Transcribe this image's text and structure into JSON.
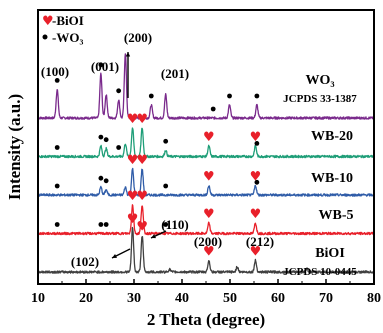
{
  "chart_data": {
    "type": "line",
    "xlabel": "2 Theta (degree)",
    "ylabel": "Intensity (a.u.)",
    "xlim": [
      10,
      80
    ],
    "x_ticks": [
      10,
      20,
      30,
      40,
      50,
      60,
      70,
      80
    ],
    "y_ticks_shown": false,
    "grid": false,
    "legend": {
      "placement": "top-left",
      "entries": [
        {
          "marker": "heart",
          "label": "-BiOI",
          "color": "#e8202a"
        },
        {
          "marker": "dot",
          "label": "-WO₃",
          "color": "#000000"
        }
      ]
    },
    "series": [
      {
        "name": "WO₃",
        "reference": "JCPDS 33-1387",
        "color": "#7a2a8c",
        "offset": 4.0,
        "peaks": [
          {
            "x": 14.0,
            "h": 0.55
          },
          {
            "x": 23.1,
            "h": 0.85
          },
          {
            "x": 24.2,
            "h": 0.45
          },
          {
            "x": 26.8,
            "h": 0.35
          },
          {
            "x": 28.2,
            "h": 1.25
          },
          {
            "x": 33.6,
            "h": 0.25
          },
          {
            "x": 36.6,
            "h": 0.45
          },
          {
            "x": 49.9,
            "h": 0.25
          },
          {
            "x": 55.6,
            "h": 0.25
          }
        ],
        "wo3_markers": [
          14.0,
          23.1,
          26.8,
          33.6,
          46.5,
          49.9,
          55.6
        ],
        "bioi_markers": []
      },
      {
        "name": "WB-20",
        "color": "#1f9e78",
        "offset": 3.0,
        "peaks": [
          {
            "x": 23.1,
            "h": 0.2
          },
          {
            "x": 24.2,
            "h": 0.15
          },
          {
            "x": 28.2,
            "h": 0.25
          },
          {
            "x": 29.7,
            "h": 0.55
          },
          {
            "x": 31.7,
            "h": 0.55
          },
          {
            "x": 36.6,
            "h": 0.12
          },
          {
            "x": 45.6,
            "h": 0.2
          },
          {
            "x": 55.3,
            "h": 0.2
          }
        ],
        "wo3_markers": [
          14.0,
          23.1,
          24.2,
          26.8,
          36.6,
          55.6
        ],
        "bioi_markers": [
          29.7,
          31.7,
          45.6,
          55.3
        ]
      },
      {
        "name": "WB-10",
        "color": "#2f5ca8",
        "offset": 2.0,
        "peaks": [
          {
            "x": 23.1,
            "h": 0.15
          },
          {
            "x": 24.2,
            "h": 0.1
          },
          {
            "x": 28.2,
            "h": 0.15
          },
          {
            "x": 29.7,
            "h": 0.5
          },
          {
            "x": 31.7,
            "h": 0.5
          },
          {
            "x": 45.6,
            "h": 0.18
          },
          {
            "x": 55.3,
            "h": 0.18
          }
        ],
        "wo3_markers": [
          14.0,
          23.1,
          24.2,
          36.6,
          55.6
        ],
        "bioi_markers": [
          29.7,
          31.7,
          45.6,
          55.3
        ]
      },
      {
        "name": "WB-5",
        "color": "#e8202a",
        "offset": 1.0,
        "peaks": [
          {
            "x": 29.7,
            "h": 0.55
          },
          {
            "x": 31.7,
            "h": 0.55
          },
          {
            "x": 45.6,
            "h": 0.2
          },
          {
            "x": 55.3,
            "h": 0.2
          }
        ],
        "wo3_markers": [
          14.0,
          23.1,
          24.2,
          36.6
        ],
        "bioi_markers": [
          29.7,
          31.7,
          45.6,
          55.3
        ]
      },
      {
        "name": "BiOI",
        "reference": "JCPDS 10-0445",
        "color": "#404040",
        "offset": 0.0,
        "peaks": [
          {
            "x": 29.7,
            "h": 0.85
          },
          {
            "x": 31.7,
            "h": 0.7
          },
          {
            "x": 37.4,
            "h": 0.05
          },
          {
            "x": 45.6,
            "h": 0.22
          },
          {
            "x": 51.5,
            "h": 0.1
          },
          {
            "x": 55.3,
            "h": 0.22
          },
          {
            "x": 66.0,
            "h": 0.06
          }
        ],
        "wo3_markers": [],
        "bioi_markers": [
          29.7,
          31.7,
          45.6,
          55.3
        ]
      }
    ],
    "annotations": [
      {
        "text": "(100)",
        "x": 14.0,
        "series": "WO₃"
      },
      {
        "text": "(001)",
        "x": 23.1,
        "series": "WO₃"
      },
      {
        "text": "(200)",
        "x": 28.2,
        "series": "WO₃"
      },
      {
        "text": "(201)",
        "x": 36.6,
        "series": "WO₃"
      },
      {
        "text": "(102)",
        "x": 29.7,
        "series": "BiOI"
      },
      {
        "text": "(110)",
        "x": 31.7,
        "series": "BiOI"
      },
      {
        "text": "(200)",
        "x": 45.6,
        "series": "BiOI"
      },
      {
        "text": "(212)",
        "x": 55.3,
        "series": "BiOI"
      }
    ]
  }
}
